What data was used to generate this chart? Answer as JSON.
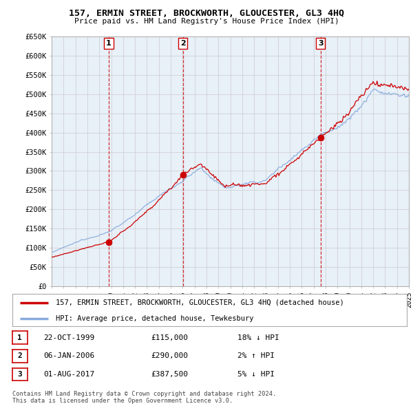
{
  "title": "157, ERMIN STREET, BROCKWORTH, GLOUCESTER, GL3 4HQ",
  "subtitle": "Price paid vs. HM Land Registry's House Price Index (HPI)",
  "ylim": [
    0,
    650000
  ],
  "yticks": [
    0,
    50000,
    100000,
    150000,
    200000,
    250000,
    300000,
    350000,
    400000,
    450000,
    500000,
    550000,
    600000,
    650000
  ],
  "sale_dates_float": [
    1999.8,
    2006.02,
    2017.585
  ],
  "sale_prices": [
    115000,
    290000,
    387500
  ],
  "sale_labels": [
    "1",
    "2",
    "3"
  ],
  "legend_entries": [
    "157, ERMIN STREET, BROCKWORTH, GLOUCESTER, GL3 4HQ (detached house)",
    "HPI: Average price, detached house, Tewkesbury"
  ],
  "table_rows": [
    {
      "num": "1",
      "date": "22-OCT-1999",
      "price": "£115,000",
      "hpi": "18% ↓ HPI"
    },
    {
      "num": "2",
      "date": "06-JAN-2006",
      "price": "£290,000",
      "hpi": "2% ↑ HPI"
    },
    {
      "num": "3",
      "date": "01-AUG-2017",
      "price": "£387,500",
      "hpi": "5% ↓ HPI"
    }
  ],
  "footnote": "Contains HM Land Registry data © Crown copyright and database right 2024.\nThis data is licensed under the Open Government Licence v3.0.",
  "line_color_sold": "#cc0000",
  "line_color_hpi": "#88aadd",
  "vline_color": "#cc0000",
  "background_color": "#ffffff",
  "chart_bg_color": "#e8f0f8",
  "grid_color": "#cccccc"
}
